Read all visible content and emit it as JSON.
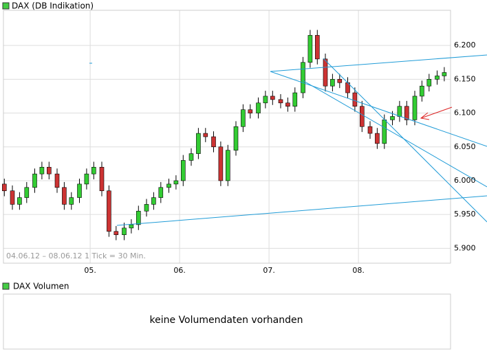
{
  "chart_data": {
    "type": "candlestick",
    "title": "DAX (DB Indikation)",
    "annotation": "04.06.12 – 08.06.12    1 Tick = 30 Min.",
    "up_color": "#33cc33",
    "down_color": "#cc3333",
    "grid": true,
    "x": [
      4.04,
      4.13,
      4.21,
      4.29,
      4.38,
      4.46,
      4.54,
      4.63,
      4.71,
      4.79,
      4.88,
      4.96,
      5.04,
      5.13,
      5.21,
      5.29,
      5.38,
      5.46,
      5.54,
      5.63,
      5.71,
      5.79,
      5.88,
      5.96,
      6.04,
      6.13,
      6.21,
      6.29,
      6.38,
      6.46,
      6.54,
      6.63,
      6.71,
      6.79,
      6.88,
      6.96,
      7.04,
      7.13,
      7.21,
      7.29,
      7.38,
      7.46,
      7.54,
      7.63,
      7.71,
      7.79,
      7.88,
      7.96,
      8.04,
      8.13,
      8.21,
      8.29,
      8.38,
      8.46,
      8.54,
      8.63,
      8.71,
      8.79,
      8.88,
      8.96
    ],
    "open": [
      5.995,
      5.985,
      5.965,
      5.975,
      5.99,
      6.01,
      6.02,
      6.01,
      5.99,
      5.965,
      5.975,
      5.995,
      6.01,
      6.02,
      5.985,
      5.925,
      5.92,
      5.93,
      5.935,
      5.955,
      5.965,
      5.975,
      5.99,
      5.995,
      6.0,
      6.03,
      6.04,
      6.07,
      6.065,
      6.05,
      6.0,
      6.045,
      6.08,
      6.105,
      6.1,
      6.115,
      6.125,
      6.12,
      6.115,
      6.11,
      6.13,
      6.175,
      6.215,
      6.18,
      6.14,
      6.15,
      6.145,
      6.13,
      6.11,
      6.08,
      6.07,
      6.055,
      6.09,
      6.095,
      6.11,
      6.09,
      6.125,
      6.14,
      6.15,
      6.155
    ],
    "high": [
      6.003,
      5.993,
      5.983,
      5.998,
      6.018,
      6.028,
      6.028,
      6.018,
      5.998,
      5.983,
      6.003,
      6.018,
      6.028,
      6.028,
      5.993,
      5.933,
      5.938,
      5.943,
      5.963,
      5.973,
      5.983,
      5.998,
      6.003,
      6.008,
      6.038,
      6.048,
      6.078,
      6.078,
      6.073,
      6.058,
      6.053,
      6.088,
      6.113,
      6.113,
      6.123,
      6.133,
      6.133,
      6.128,
      6.123,
      6.138,
      6.183,
      6.223,
      6.223,
      6.188,
      6.158,
      6.158,
      6.153,
      6.138,
      6.118,
      6.088,
      6.078,
      6.098,
      6.103,
      6.118,
      6.118,
      6.133,
      6.148,
      6.158,
      6.163,
      6.168
    ],
    "low": [
      5.977,
      5.957,
      5.957,
      5.967,
      5.982,
      6.002,
      6.002,
      5.982,
      5.957,
      5.957,
      5.967,
      5.987,
      6.002,
      5.977,
      5.917,
      5.912,
      5.912,
      5.922,
      5.927,
      5.947,
      5.957,
      5.967,
      5.982,
      5.987,
      5.992,
      6.022,
      6.032,
      6.057,
      6.042,
      5.992,
      5.992,
      6.037,
      6.072,
      6.092,
      6.092,
      6.107,
      6.112,
      6.107,
      6.102,
      6.102,
      6.122,
      6.167,
      6.172,
      6.132,
      6.132,
      6.137,
      6.122,
      6.102,
      6.072,
      6.062,
      6.047,
      6.047,
      6.082,
      6.087,
      6.082,
      6.082,
      6.117,
      6.132,
      6.142,
      6.147
    ],
    "close": [
      5.985,
      5.965,
      5.975,
      5.99,
      6.01,
      6.02,
      6.01,
      5.99,
      5.965,
      5.975,
      5.995,
      6.01,
      6.02,
      5.985,
      5.925,
      5.92,
      5.93,
      5.935,
      5.955,
      5.965,
      5.975,
      5.99,
      5.995,
      6.0,
      6.03,
      6.04,
      6.07,
      6.065,
      6.05,
      6.0,
      6.045,
      6.08,
      6.105,
      6.1,
      6.115,
      6.125,
      6.12,
      6.115,
      6.11,
      6.13,
      6.175,
      6.215,
      6.18,
      6.14,
      6.15,
      6.145,
      6.13,
      6.11,
      6.08,
      6.07,
      6.055,
      6.09,
      6.095,
      6.11,
      6.09,
      6.125,
      6.14,
      6.15,
      6.155,
      6.16
    ],
    "xlim": [
      4.03,
      9.03
    ],
    "xticks": [
      {
        "value": 5,
        "label": "05."
      },
      {
        "value": 6,
        "label": "06."
      },
      {
        "value": 7,
        "label": "07."
      },
      {
        "value": 8,
        "label": "08."
      }
    ],
    "ylim": [
      5.878,
      6.252
    ],
    "yticks": [
      {
        "value": 5.9,
        "label": "5.900"
      },
      {
        "value": 5.95,
        "label": "5.950"
      },
      {
        "value": 6.0,
        "label": "6.000"
      },
      {
        "value": 6.05,
        "label": "6.050"
      },
      {
        "value": 6.1,
        "label": "6.100"
      },
      {
        "value": 6.15,
        "label": "6.150"
      },
      {
        "value": 6.2,
        "label": "6.200"
      }
    ]
  },
  "volume_panel": {
    "title": "DAX Volumen",
    "message": "keine Volumendaten vorhanden"
  }
}
